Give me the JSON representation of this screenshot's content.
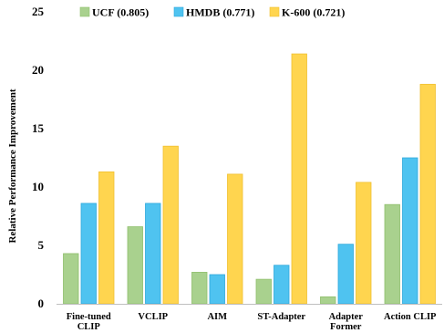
{
  "chart_data": {
    "type": "bar",
    "ylabel": "Relative Performance Improvement",
    "xlabel": "",
    "ylim": [
      0,
      25
    ],
    "yticks": [
      0,
      5,
      10,
      15,
      20,
      25
    ],
    "legend_position": "top",
    "grid": false,
    "categories": [
      [
        "Fine-tuned",
        "CLIP"
      ],
      [
        "VCLIP"
      ],
      [
        "AIM"
      ],
      [
        "ST-Adapter"
      ],
      [
        "Adapter",
        "Former"
      ],
      [
        "Action CLIP"
      ]
    ],
    "series": [
      {
        "name": "UCF (0.805)",
        "color": "#a9d18e",
        "stroke": "#8fbf6c",
        "values": [
          4.3,
          6.6,
          2.7,
          2.1,
          0.6,
          8.5
        ]
      },
      {
        "name": "HMDB (0.771)",
        "color": "#4fc3f0",
        "stroke": "#2ea8db",
        "values": [
          8.6,
          8.6,
          2.5,
          3.3,
          5.1,
          12.5
        ]
      },
      {
        "name": "K-600 (0.721)",
        "color": "#ffd54f",
        "stroke": "#f0c030",
        "values": [
          11.3,
          13.5,
          11.1,
          21.4,
          10.4,
          18.8
        ]
      }
    ]
  }
}
